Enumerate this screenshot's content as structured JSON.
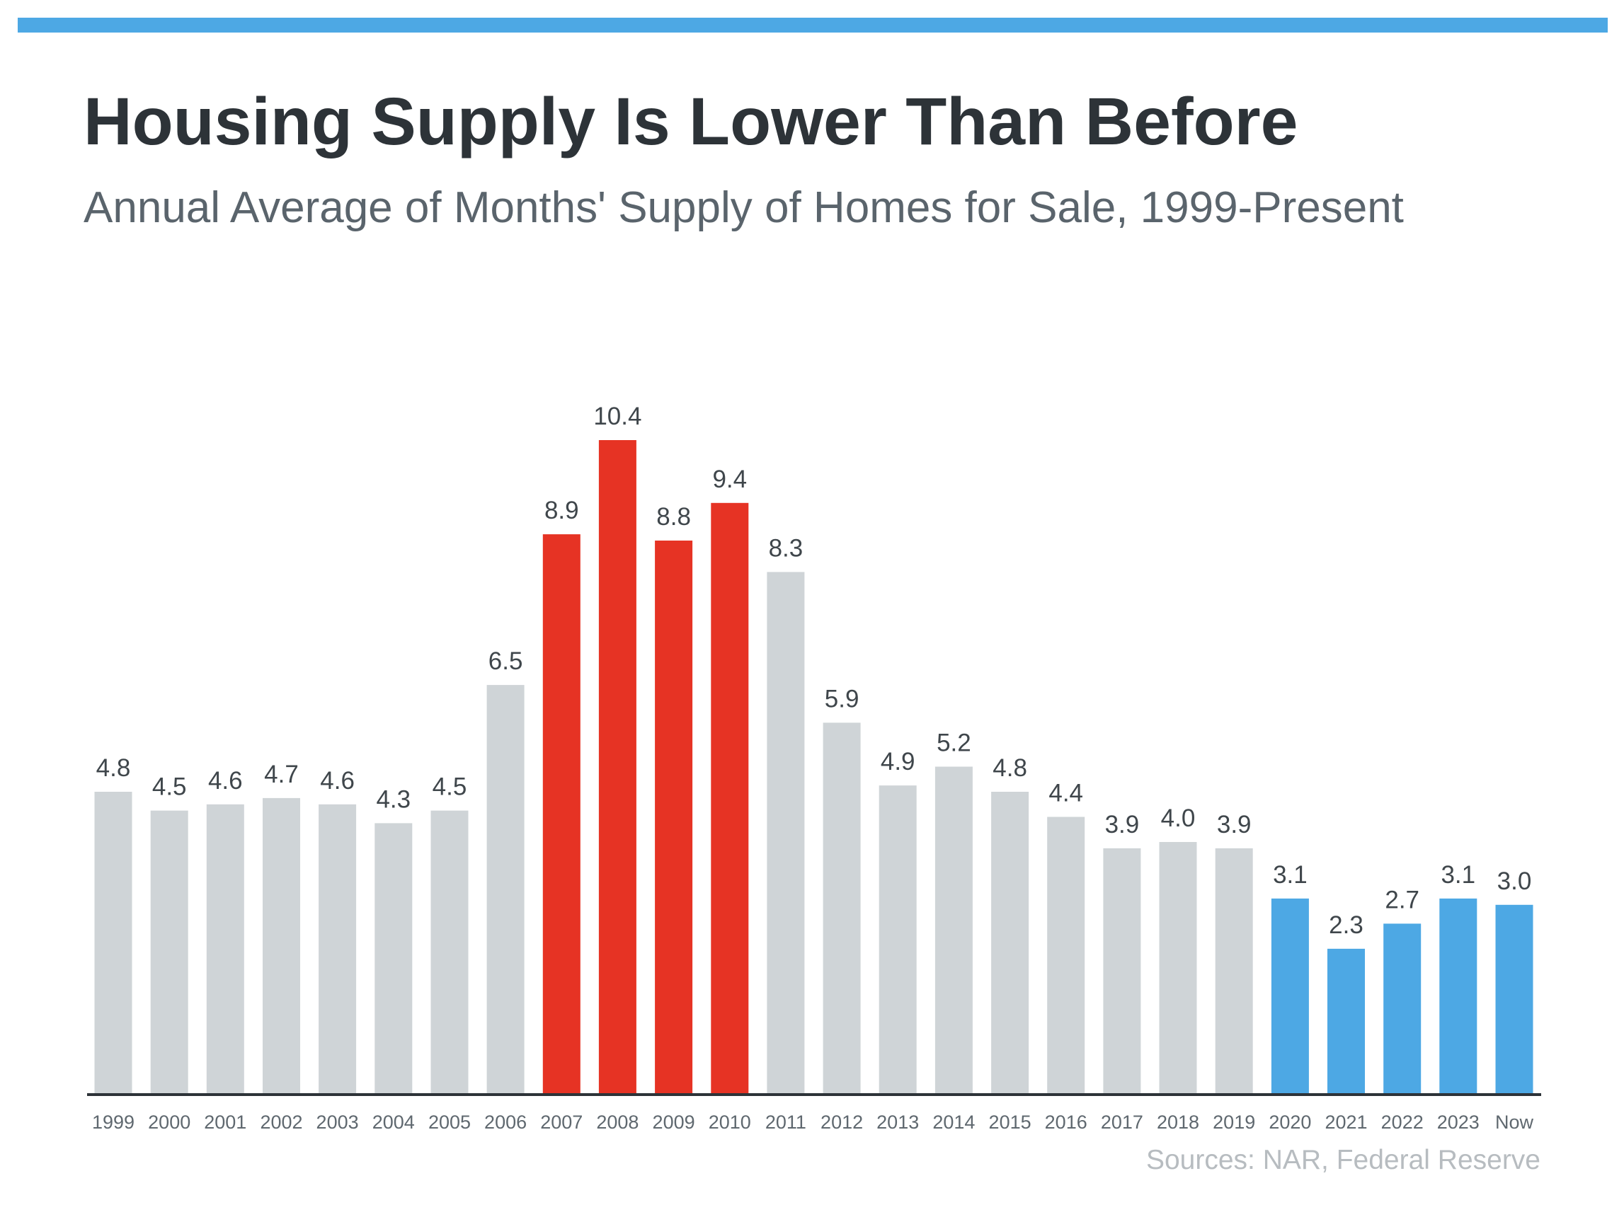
{
  "title": "Housing Supply Is Lower Than Before",
  "subtitle": "Annual Average of Months' Supply of Homes for Sale, 1999-Present",
  "source": "Sources: NAR, Federal Reserve",
  "colors": {
    "accent_bar": "#4da8e4",
    "bar_default": "#cfd4d7",
    "bar_highlight_red": "#e63324",
    "bar_highlight_blue": "#4da8e4",
    "axis": "#2d3338",
    "label_text": "#3f464b",
    "tick_text": "#5f686f"
  },
  "chart_data": {
    "type": "bar",
    "title": "Housing Supply Is Lower Than Before",
    "subtitle": "Annual Average of Months' Supply of Homes for Sale, 1999-Present",
    "xlabel": "",
    "ylabel": "",
    "ylim": [
      0,
      10.4
    ],
    "grid": false,
    "categories": [
      "1999",
      "2000",
      "2001",
      "2002",
      "2003",
      "2004",
      "2005",
      "2006",
      "2007",
      "2008",
      "2009",
      "2010",
      "2011",
      "2012",
      "2013",
      "2014",
      "2015",
      "2016",
      "2017",
      "2018",
      "2019",
      "2020",
      "2021",
      "2022",
      "2023",
      "Now"
    ],
    "values": [
      4.8,
      4.5,
      4.6,
      4.7,
      4.6,
      4.3,
      4.5,
      6.5,
      8.9,
      10.4,
      8.8,
      9.4,
      8.3,
      5.9,
      4.9,
      5.2,
      4.8,
      4.4,
      3.9,
      4.0,
      3.9,
      3.1,
      2.3,
      2.7,
      3.1,
      3.0
    ],
    "value_labels": [
      "4.8",
      "4.5",
      "4.6",
      "4.7",
      "4.6",
      "4.3",
      "4.5",
      "6.5",
      "8.9",
      "10.4",
      "8.8",
      "9.4",
      "8.3",
      "5.9",
      "4.9",
      "5.2",
      "4.8",
      "4.4",
      "3.9",
      "4.0",
      "3.9",
      "3.1",
      "2.3",
      "2.7",
      "3.1",
      "3.0"
    ],
    "bar_groups": [
      "gray",
      "gray",
      "gray",
      "gray",
      "gray",
      "gray",
      "gray",
      "gray",
      "red",
      "red",
      "red",
      "red",
      "gray",
      "gray",
      "gray",
      "gray",
      "gray",
      "gray",
      "gray",
      "gray",
      "gray",
      "blue",
      "blue",
      "blue",
      "blue",
      "blue"
    ]
  }
}
